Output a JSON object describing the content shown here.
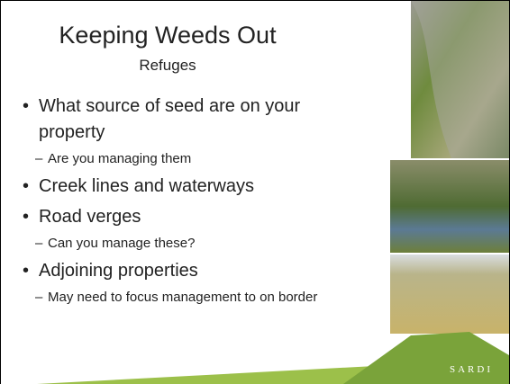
{
  "header": {
    "title": "Keeping Weeds Out",
    "subtitle": "Refuges"
  },
  "bullets": [
    {
      "text": "What source of seed are on your property",
      "level": 1
    },
    {
      "text": "Are you managing them",
      "level": 2
    },
    {
      "text": "Creek lines and waterways",
      "level": 1
    },
    {
      "text": "Road verges",
      "level": 1
    },
    {
      "text": "Can you manage these?",
      "level": 2
    },
    {
      "text": "Adjoining properties",
      "level": 1
    },
    {
      "text": "May need to focus management to on border",
      "level": 2
    }
  ],
  "footer": {
    "logo": "SARDI"
  }
}
